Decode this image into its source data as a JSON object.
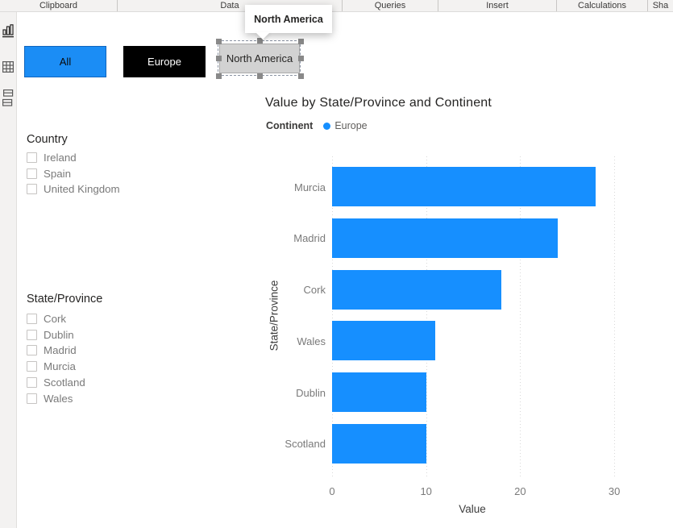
{
  "ribbon": {
    "groups": [
      "Clipboard",
      "Data",
      "Queries",
      "Insert",
      "Calculations",
      "Sha"
    ]
  },
  "sidebar": {
    "views": [
      "report-view",
      "data-view",
      "model-view"
    ]
  },
  "tooltip": {
    "text": "North America"
  },
  "more_options": "···",
  "slicer_buttons": [
    {
      "label": "All",
      "fill": "#1B8DF5",
      "border": "#1065BE",
      "text_color": "#0B0B0B",
      "selected": false
    },
    {
      "label": "Europe",
      "fill": "#000000",
      "border": "#000000",
      "text_color": "#FFFFFF",
      "selected": false
    },
    {
      "label": "North America",
      "fill": "#D2D2D2",
      "border": "#ABABAB",
      "text_color": "#252423",
      "selected": true
    }
  ],
  "filters": [
    {
      "title": "Country",
      "items": [
        {
          "label": "Ireland",
          "checked": false
        },
        {
          "label": "Spain",
          "checked": false
        },
        {
          "label": "United Kingdom",
          "checked": false
        }
      ]
    },
    {
      "title": "State/Province",
      "items": [
        {
          "label": "Cork",
          "checked": false
        },
        {
          "label": "Dublin",
          "checked": false
        },
        {
          "label": "Madrid",
          "checked": false
        },
        {
          "label": "Murcia",
          "checked": false
        },
        {
          "label": "Scotland",
          "checked": false
        },
        {
          "label": "Wales",
          "checked": false
        }
      ]
    }
  ],
  "chart_data": {
    "type": "bar",
    "orientation": "horizontal",
    "title": "Value by State/Province and Continent",
    "legend": {
      "title": "Continent",
      "position": "top-left",
      "entries": [
        {
          "label": "Europe",
          "color": "#168FFF"
        }
      ]
    },
    "categories": [
      "Murcia",
      "Madrid",
      "Cork",
      "Wales",
      "Dublin",
      "Scotland"
    ],
    "values": [
      28,
      24,
      18,
      11,
      10,
      10
    ],
    "xlabel": "Value",
    "ylabel": "State/Province",
    "xticks": [
      0,
      10,
      20,
      30
    ],
    "xlim": [
      0,
      32.4
    ],
    "bar_color": "#168FFF",
    "grid": "vertical-dotted"
  }
}
